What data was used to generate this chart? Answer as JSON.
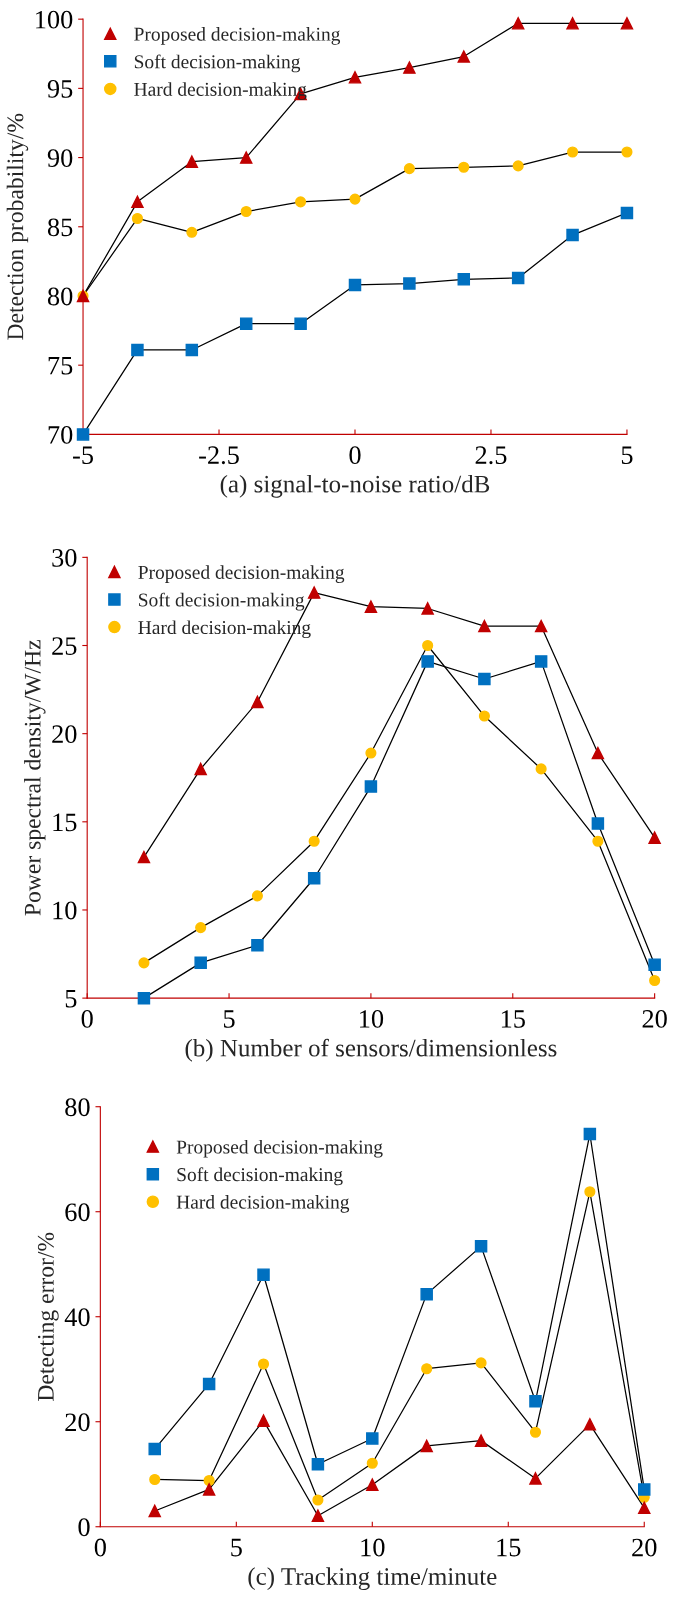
{
  "chart_data": [
    {
      "type": "line",
      "xlabel": "(a) signal-to-noise ratio/dB",
      "ylabel": "Detection probability/%",
      "x": [
        -5,
        -4,
        -3,
        -2,
        -1,
        0,
        1,
        2,
        3,
        4,
        5
      ],
      "xlim": [
        -5,
        5
      ],
      "xticks": [
        -5,
        -2.5,
        0,
        2.5,
        5
      ],
      "ylim": [
        70,
        100
      ],
      "yticks": [
        70,
        75,
        80,
        85,
        90,
        95,
        100
      ],
      "legend": "top left",
      "grid": false,
      "series": [
        {
          "name": "Proposed decision-making",
          "color": "#c00000",
          "marker": "triangle",
          "values": [
            80,
            86.8,
            89.7,
            90,
            94.6,
            95.8,
            96.5,
            97.3,
            99.7,
            99.7,
            99.7
          ]
        },
        {
          "name": "Soft decision-making",
          "color": "#0070c0",
          "marker": "square",
          "values": [
            70,
            76.1,
            76.1,
            78,
            78,
            80.8,
            80.9,
            81.2,
            81.3,
            84.4,
            86
          ]
        },
        {
          "name": "Hard decision-making",
          "color": "#ffc000",
          "marker": "circle",
          "values": [
            80,
            85.6,
            84.6,
            86.1,
            86.8,
            87,
            89.2,
            89.3,
            89.4,
            90.4,
            90.4
          ]
        }
      ]
    },
    {
      "type": "line",
      "xlabel": "(b) Number of sensors/dimensionless",
      "ylabel": "Power spectral density/W/Hz",
      "x": [
        2,
        4,
        6,
        8,
        10,
        12,
        14,
        16,
        18,
        20
      ],
      "xlim": [
        0,
        20
      ],
      "xticks": [
        0,
        5,
        10,
        15,
        20
      ],
      "ylim": [
        5,
        30
      ],
      "yticks": [
        5,
        10,
        15,
        20,
        25,
        30
      ],
      "legend": "top left",
      "grid": false,
      "series": [
        {
          "name": "Proposed decision-making",
          "color": "#c00000",
          "marker": "triangle",
          "values": [
            13,
            18,
            21.8,
            28,
            27.2,
            27.1,
            26.1,
            26.1,
            18.9,
            14.1
          ]
        },
        {
          "name": "Soft decision-making",
          "color": "#0070c0",
          "marker": "square",
          "values": [
            5,
            7,
            8,
            11.8,
            17,
            24.1,
            23.1,
            24.1,
            14.9,
            6.9
          ]
        },
        {
          "name": "Hard decision-making",
          "color": "#ffc000",
          "marker": "circle",
          "values": [
            7,
            9,
            10.8,
            13.9,
            18.9,
            25,
            21,
            18,
            13.9,
            6
          ]
        }
      ]
    },
    {
      "type": "line",
      "xlabel": "(c) Tracking time/minute",
      "ylabel": "Detecting error/%",
      "x": [
        2,
        4,
        6,
        8,
        10,
        12,
        14,
        16,
        18,
        20
      ],
      "xlim": [
        0,
        20
      ],
      "xticks": [
        0,
        5,
        10,
        15,
        20
      ],
      "ylim": [
        0,
        80
      ],
      "yticks": [
        0,
        20,
        40,
        60,
        80
      ],
      "legend": "top left",
      "grid": false,
      "series": [
        {
          "name": "Proposed decision-making",
          "color": "#c00000",
          "marker": "triangle",
          "values": [
            3.0,
            7.1,
            20.2,
            2.1,
            8.0,
            15.4,
            16.4,
            9.2,
            19.5,
            3.6
          ]
        },
        {
          "name": "Soft decision-making",
          "color": "#0070c0",
          "marker": "square",
          "values": [
            14.8,
            27.2,
            48.0,
            11.9,
            16.8,
            44.3,
            53.4,
            23.9,
            74.8,
            7.1
          ]
        },
        {
          "name": "Hard decision-making",
          "color": "#ffc000",
          "marker": "circle",
          "values": [
            9.0,
            8.8,
            31.0,
            5.1,
            12.1,
            30.1,
            31.2,
            18.0,
            63.8,
            5.6
          ]
        }
      ]
    }
  ]
}
